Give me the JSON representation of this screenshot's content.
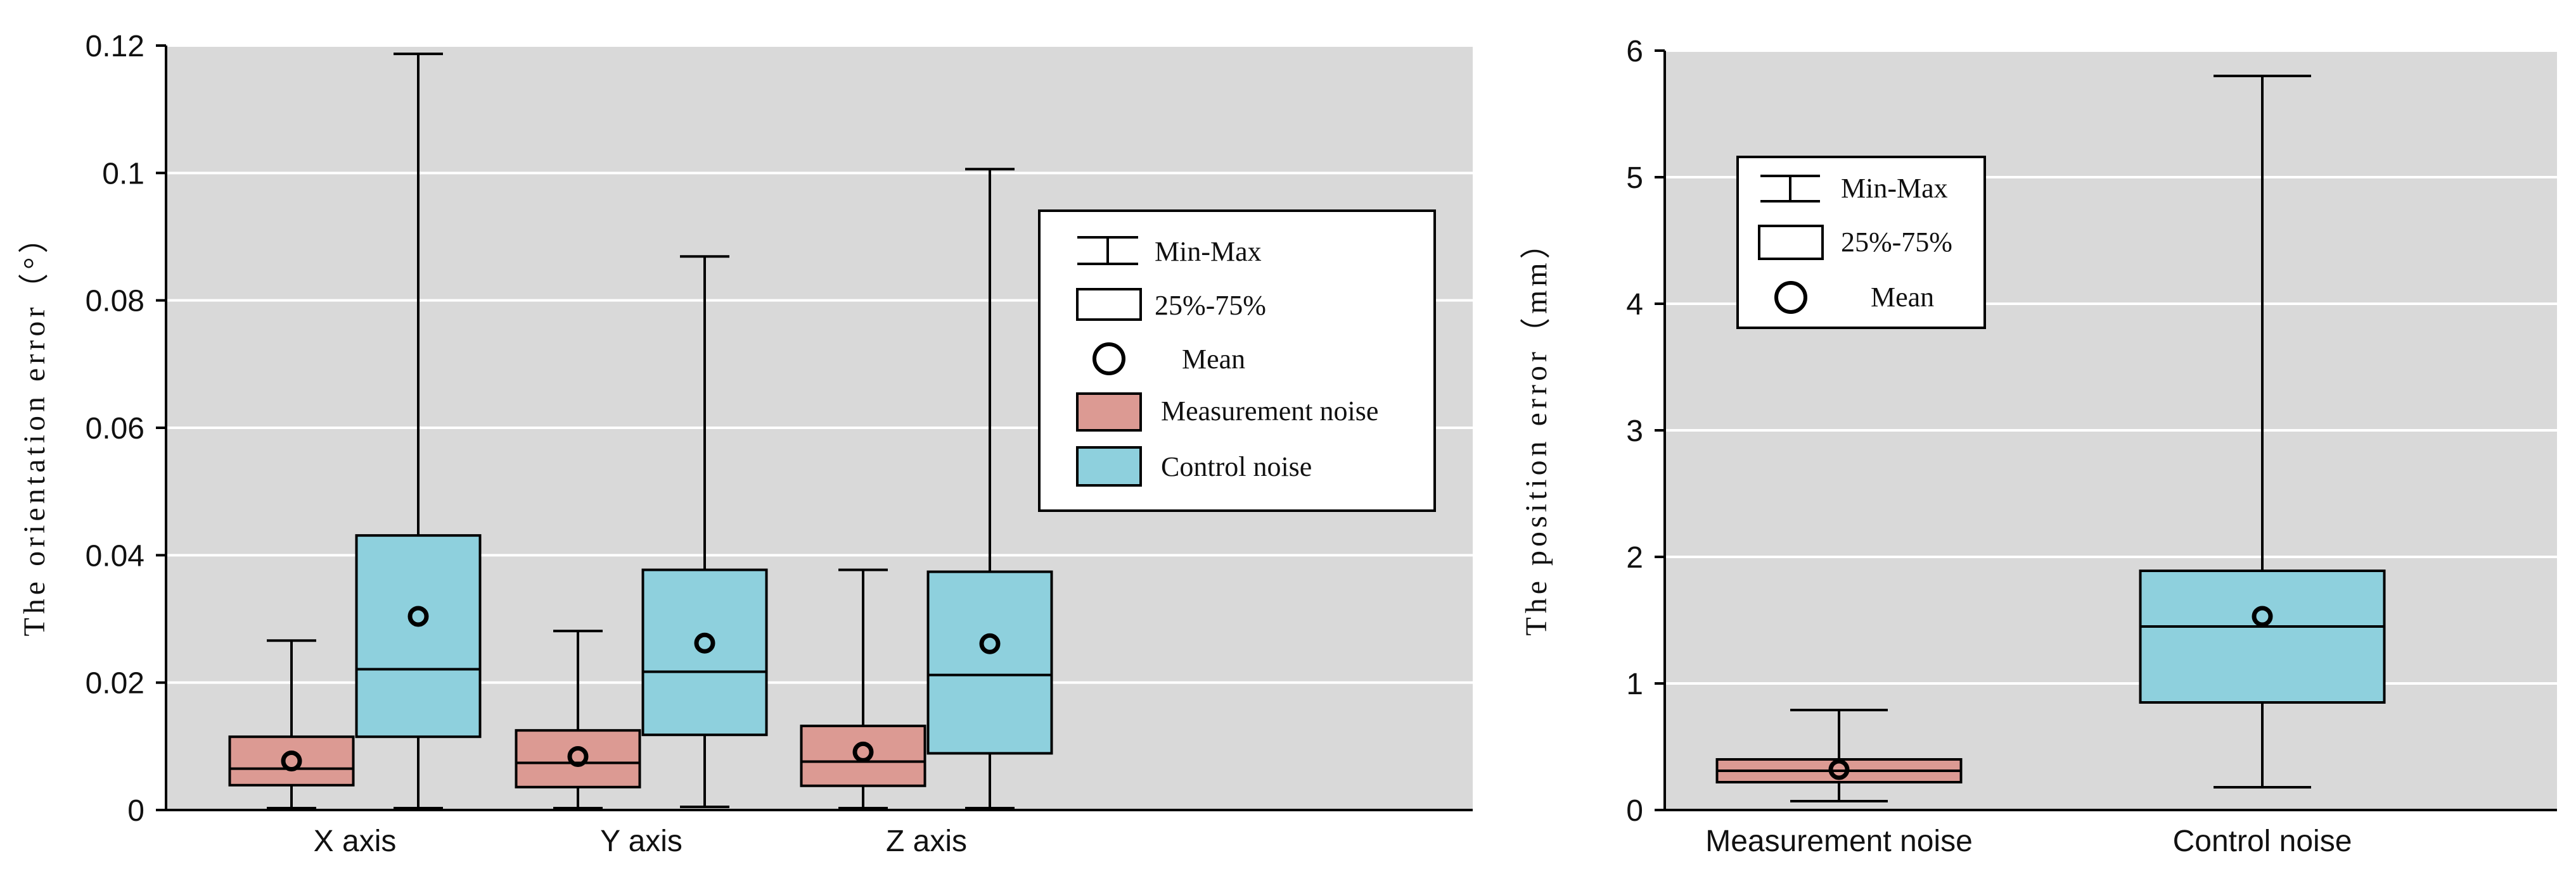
{
  "chart_data": [
    {
      "type": "box",
      "ylabel": "The orientation error（°）",
      "ylim": [
        0,
        0.12
      ],
      "yticks": [
        0,
        0.02,
        0.04,
        0.06,
        0.08,
        0.1,
        0.12
      ],
      "ytick_labels": [
        "0",
        "0.02",
        "0.04",
        "0.06",
        "0.08",
        "0.1",
        "0.12"
      ],
      "categories": [
        "X axis",
        "Y axis",
        "Z axis"
      ],
      "grid": "horizontal",
      "legend_position": "top-right",
      "legend": {
        "minmax": "Min-Max",
        "iqr": "25%-75%",
        "mean": "Mean",
        "series": [
          "Measurement noise",
          "Control noise"
        ]
      },
      "series": [
        {
          "name": "Measurement noise",
          "color": "#dc9a93",
          "boxes": [
            {
              "min": 0.0003,
              "q1": 0.0039,
              "median": 0.0065,
              "q3": 0.0115,
              "max": 0.0266,
              "mean": 0.0077
            },
            {
              "min": 0.0003,
              "q1": 0.0036,
              "median": 0.0074,
              "q3": 0.0125,
              "max": 0.0281,
              "mean": 0.0084
            },
            {
              "min": 0.0003,
              "q1": 0.0038,
              "median": 0.0076,
              "q3": 0.0132,
              "max": 0.0377,
              "mean": 0.0091
            }
          ]
        },
        {
          "name": "Control noise",
          "color": "#8ed0dd",
          "boxes": [
            {
              "min": 0.0003,
              "q1": 0.0115,
              "median": 0.0221,
              "q3": 0.0431,
              "max": 0.1187,
              "mean": 0.0304
            },
            {
              "min": 0.0005,
              "q1": 0.0118,
              "median": 0.0217,
              "q3": 0.0377,
              "max": 0.0869,
              "mean": 0.0262
            },
            {
              "min": 0.0003,
              "q1": 0.0089,
              "median": 0.0212,
              "q3": 0.0374,
              "max": 0.1006,
              "mean": 0.0261
            }
          ]
        }
      ]
    },
    {
      "type": "box",
      "ylabel": "The position error（mm）",
      "ylim": [
        0,
        6
      ],
      "yticks": [
        0,
        1,
        2,
        3,
        4,
        5,
        6
      ],
      "ytick_labels": [
        "0",
        "1",
        "2",
        "3",
        "4",
        "5",
        "6"
      ],
      "categories": [
        "Measurement noise",
        "Control noise"
      ],
      "grid": "horizontal",
      "legend_position": "top-left",
      "legend": {
        "minmax": "Min-Max",
        "iqr": "25%-75%",
        "mean": "Mean"
      },
      "boxes": [
        {
          "name": "Measurement noise",
          "color": "#dc9a93",
          "min": 0.07,
          "q1": 0.22,
          "median": 0.31,
          "q3": 0.4,
          "max": 0.79,
          "mean": 0.32
        },
        {
          "name": "Control noise",
          "color": "#8ed0dd",
          "min": 0.18,
          "q1": 0.85,
          "median": 1.45,
          "q3": 1.89,
          "max": 5.8,
          "mean": 1.53
        }
      ]
    }
  ]
}
